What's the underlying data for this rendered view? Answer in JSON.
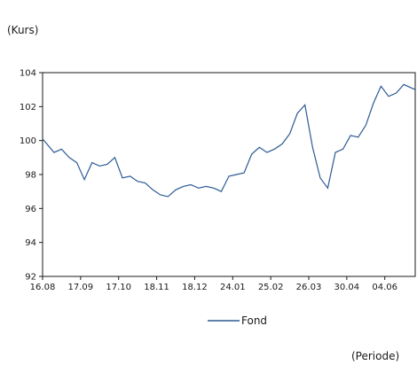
{
  "chart_data": {
    "type": "line",
    "y_unit_label": "(Kurs)",
    "x_unit_label": "(Periode)",
    "ylim": [
      92,
      104
    ],
    "y_ticks": [
      "92",
      "94",
      "96",
      "98",
      "100",
      "102",
      "104"
    ],
    "x_ticks": [
      "16.08",
      "17.09",
      "17.10",
      "18.11",
      "18.12",
      "24.01",
      "25.02",
      "26.03",
      "30.04",
      "04.06"
    ],
    "grid": false,
    "legend_position": "bottom-center",
    "series": [
      {
        "name": "Fond",
        "color": "#2b5a94",
        "x": [
          0,
          0.3,
          0.5,
          0.7,
          0.9,
          1.1,
          1.3,
          1.5,
          1.7,
          1.9,
          2.1,
          2.3,
          2.5,
          2.7,
          2.9,
          3.1,
          3.3,
          3.5,
          3.7,
          3.9,
          4.1,
          4.3,
          4.5,
          4.7,
          4.9,
          5.1,
          5.3,
          5.5,
          5.7,
          5.9,
          6.1,
          6.3,
          6.5,
          6.7,
          6.9,
          7.1,
          7.3,
          7.5,
          7.7,
          7.9,
          8.1,
          8.3,
          8.5,
          8.7,
          8.9,
          9.1,
          9.3,
          9.5,
          9.8
        ],
        "values": [
          100.1,
          99.3,
          99.5,
          99.0,
          98.7,
          97.7,
          98.7,
          98.5,
          98.6,
          99.0,
          97.8,
          97.9,
          97.6,
          97.5,
          97.1,
          96.8,
          96.7,
          97.1,
          97.3,
          97.4,
          97.2,
          97.3,
          97.2,
          97.0,
          97.9,
          98.0,
          98.1,
          99.2,
          99.6,
          99.3,
          99.5,
          99.8,
          100.4,
          101.6,
          102.1,
          99.6,
          97.8,
          97.2,
          99.3,
          99.5,
          100.3,
          100.2,
          100.9,
          102.2,
          103.2,
          102.6,
          102.8,
          103.3,
          103.0
        ]
      }
    ]
  }
}
